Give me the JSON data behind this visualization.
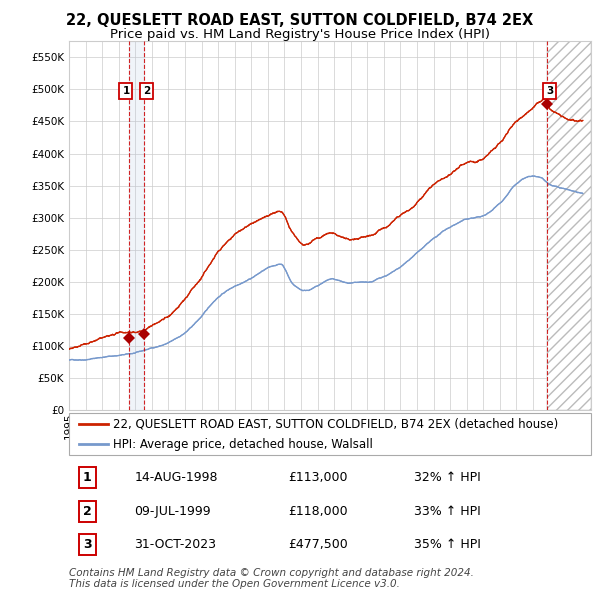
{
  "title": "22, QUESLETT ROAD EAST, SUTTON COLDFIELD, B74 2EX",
  "subtitle": "Price paid vs. HM Land Registry's House Price Index (HPI)",
  "legend_line1": "22, QUESLETT ROAD EAST, SUTTON COLDFIELD, B74 2EX (detached house)",
  "legend_line2": "HPI: Average price, detached house, Walsall",
  "footer1": "Contains HM Land Registry data © Crown copyright and database right 2024.",
  "footer2": "This data is licensed under the Open Government Licence v3.0.",
  "transactions": [
    {
      "num": 1,
      "date": "14-AUG-1998",
      "price": "£113,000",
      "pct": "32% ↑ HPI",
      "year": 1998.617
    },
    {
      "num": 2,
      "date": "09-JUL-1999",
      "price": "£118,000",
      "pct": "33% ↑ HPI",
      "year": 1999.519
    },
    {
      "num": 3,
      "date": "31-OCT-2023",
      "price": "£477,500",
      "pct": "35% ↑ HPI",
      "year": 2023.831
    }
  ],
  "ylim_max": 575000,
  "xlim_start": 1995.0,
  "xlim_end": 2026.5,
  "hpi_color": "#7799cc",
  "price_color": "#cc2200",
  "marker_color": "#aa0000",
  "vline_color": "#cc0000",
  "background_color": "#ffffff",
  "grid_color": "#cccccc",
  "title_fontsize": 10.5,
  "subtitle_fontsize": 9.5,
  "tick_fontsize": 7.5,
  "legend_fontsize": 8.5,
  "table_fontsize": 9,
  "footer_fontsize": 7.5,
  "hpi_key_years": [
    1995.0,
    1996.0,
    1997.0,
    1998.0,
    1999.0,
    2000.0,
    2001.0,
    2002.0,
    2003.0,
    2004.0,
    2005.0,
    2006.0,
    2007.0,
    2007.8,
    2008.5,
    2009.2,
    2010.0,
    2010.8,
    2012.0,
    2013.0,
    2014.0,
    2015.0,
    2016.0,
    2017.0,
    2018.0,
    2019.0,
    2020.0,
    2021.0,
    2022.0,
    2022.8,
    2023.5,
    2024.0,
    2025.0,
    2026.0
  ],
  "hpi_key_vals": [
    78000,
    80000,
    84000,
    87000,
    90000,
    97000,
    105000,
    120000,
    145000,
    175000,
    193000,
    207000,
    222000,
    228000,
    198000,
    188000,
    195000,
    205000,
    197000,
    196000,
    205000,
    218000,
    240000,
    260000,
    278000,
    290000,
    295000,
    315000,
    345000,
    355000,
    352000,
    340000,
    333000,
    328000
  ],
  "price_key_years": [
    1995.0,
    1996.0,
    1997.0,
    1998.0,
    1998.617,
    1999.519,
    2000.0,
    2001.0,
    2002.0,
    2003.0,
    2004.0,
    2005.0,
    2006.0,
    2007.0,
    2007.8,
    2008.5,
    2009.2,
    2010.0,
    2010.8,
    2012.0,
    2013.0,
    2014.0,
    2015.0,
    2016.0,
    2017.0,
    2018.0,
    2019.0,
    2020.0,
    2021.0,
    2022.0,
    2022.8,
    2023.0,
    2023.831,
    2024.0,
    2025.0,
    2026.0
  ],
  "price_key_vals": [
    95000,
    98000,
    105000,
    110000,
    113000,
    118000,
    125000,
    140000,
    165000,
    200000,
    240000,
    268000,
    285000,
    297000,
    305000,
    268000,
    248000,
    262000,
    270000,
    258000,
    262000,
    275000,
    293000,
    312000,
    335000,
    355000,
    372000,
    382000,
    405000,
    440000,
    460000,
    465000,
    477500,
    462000,
    452000,
    447000
  ]
}
